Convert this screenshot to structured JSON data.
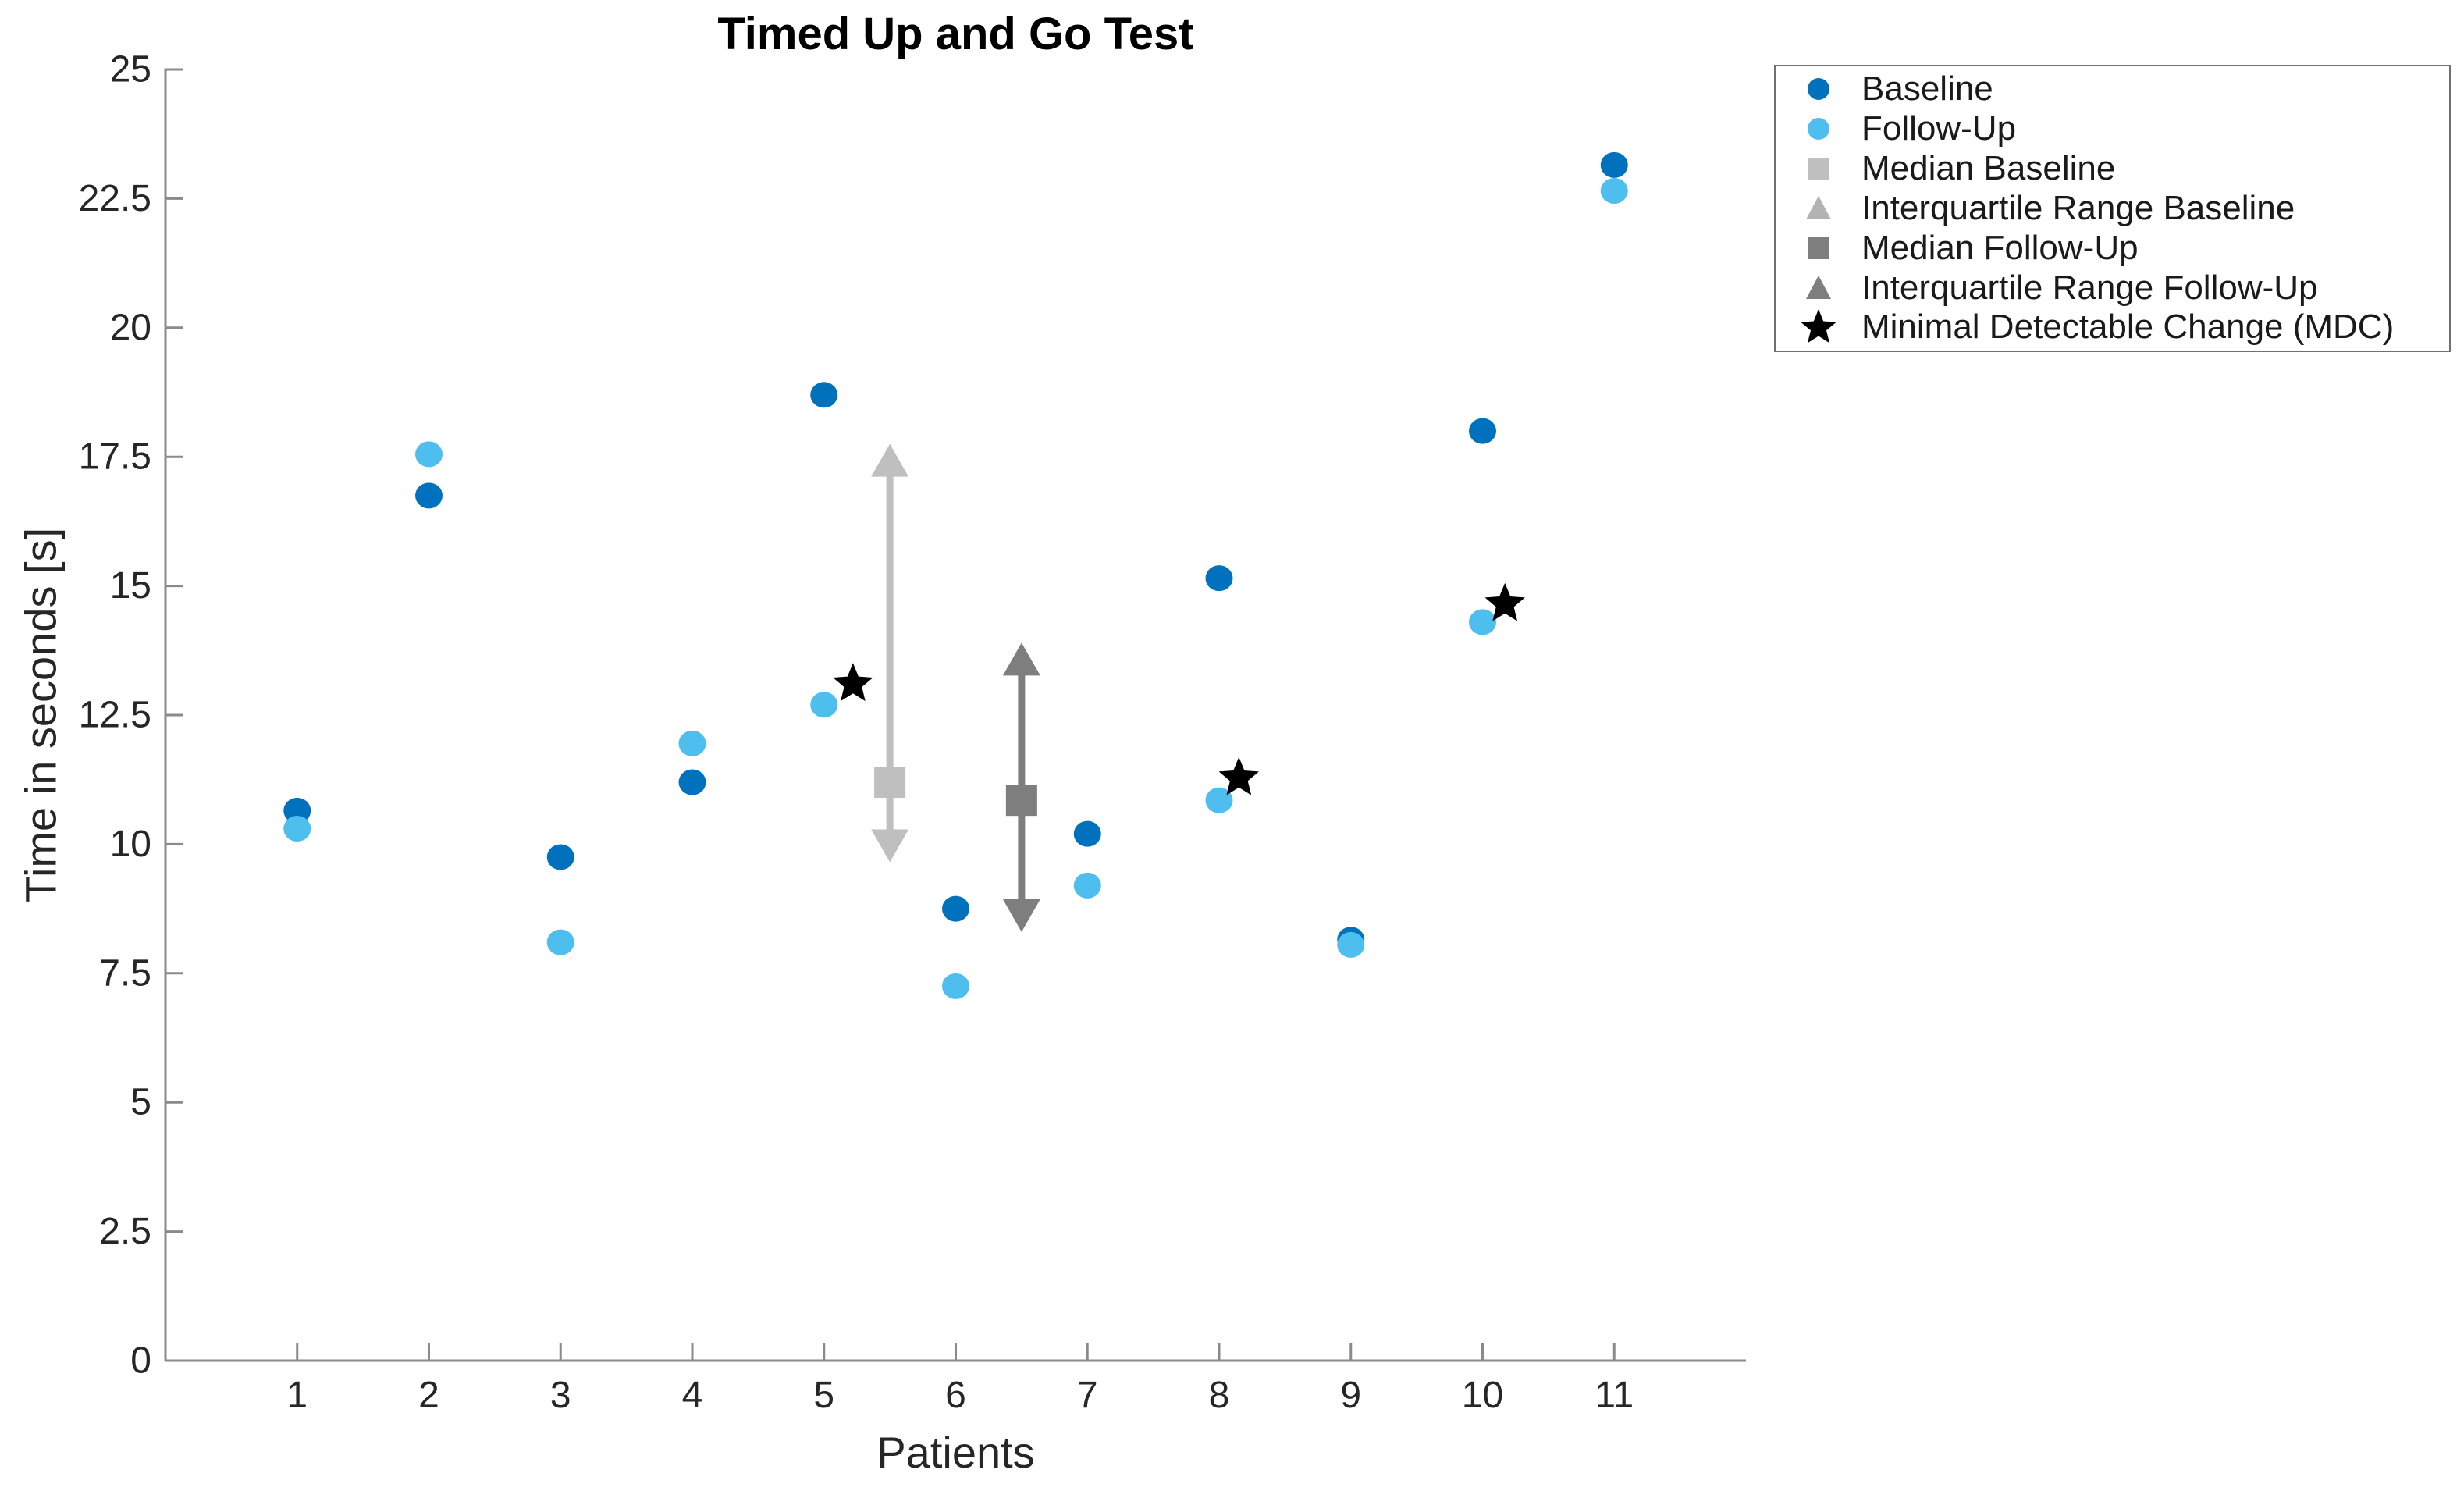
{
  "chart_data": {
    "type": "scatter",
    "title": "Timed Up and Go Test",
    "xlabel": "Patients",
    "ylabel": "Time in seconds [s]",
    "xlim": [
      0,
      12
    ],
    "ylim": [
      0,
      25
    ],
    "x_ticks": [
      1,
      2,
      3,
      4,
      5,
      6,
      7,
      8,
      9,
      10,
      11
    ],
    "y_ticks": [
      0,
      2.5,
      5,
      7.5,
      10,
      12.5,
      15,
      17.5,
      20,
      22.5,
      25
    ],
    "y_tick_labels": [
      "0",
      "2.5",
      "5",
      "7.5",
      "10",
      "12.5",
      "15",
      "17.5",
      "20",
      "22.5",
      "25"
    ],
    "grid": false,
    "categories": [
      1,
      2,
      3,
      4,
      5,
      6,
      7,
      8,
      9,
      10,
      11
    ],
    "series": [
      {
        "name": "Baseline",
        "marker": "circle",
        "color": "#0072BD",
        "values": [
          10.65,
          16.75,
          9.75,
          11.2,
          18.7,
          8.75,
          10.2,
          15.15,
          8.15,
          18.0,
          23.15
        ]
      },
      {
        "name": "Follow-Up",
        "marker": "circle",
        "color": "#4DBEEE",
        "values": [
          10.3,
          17.55,
          8.1,
          11.95,
          12.7,
          7.25,
          9.2,
          10.85,
          8.05,
          14.3,
          22.65
        ]
      }
    ],
    "medians": [
      {
        "name": "Median Baseline",
        "x": 5.5,
        "value": 11.2,
        "color": "#BFBFBF"
      },
      {
        "name": "Median Follow-Up",
        "x": 6.5,
        "value": 10.85,
        "color": "#7E7E7E"
      }
    ],
    "iqr_ranges": [
      {
        "name": "Interquartile Range Baseline",
        "x": 5.5,
        "from": 9.65,
        "to": 17.75,
        "color": "#BFBFBF"
      },
      {
        "name": "Interquartile Range Follow-Up",
        "x": 6.5,
        "from": 8.3,
        "to": 13.9,
        "color": "#7E7E7E"
      }
    ],
    "mdc_points": [
      {
        "x": 5.22,
        "value": 13.1
      },
      {
        "x": 8.15,
        "value": 11.28
      },
      {
        "x": 10.17,
        "value": 14.65
      }
    ],
    "mdc_color": "#000000",
    "axis_color": "#8A8A8A",
    "tick_text_color": "#262626",
    "legend": {
      "position": "outside-top-right",
      "entries": [
        {
          "label": "Baseline",
          "marker": "circle",
          "color": "#0072BD"
        },
        {
          "label": "Follow-Up",
          "marker": "circle",
          "color": "#4DBEEE"
        },
        {
          "label": "Median Baseline",
          "marker": "square",
          "color": "#BFBFBF"
        },
        {
          "label": "Interquartile Range Baseline",
          "marker": "triangle",
          "color": "#B3B3B3"
        },
        {
          "label": "Median Follow-Up",
          "marker": "square",
          "color": "#7E7E7E"
        },
        {
          "label": "Interquartile Range Follow-Up",
          "marker": "triangle",
          "color": "#7E7E7E"
        },
        {
          "label": "Minimal Detectable Change (MDC)",
          "marker": "star",
          "color": "#000000"
        }
      ]
    }
  }
}
